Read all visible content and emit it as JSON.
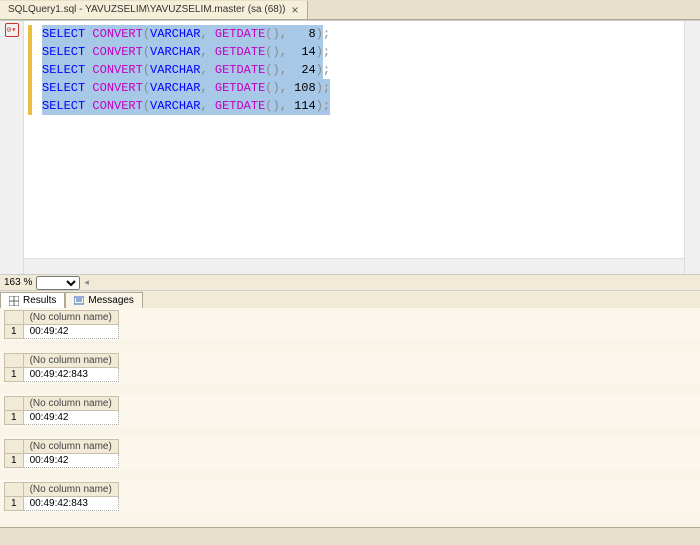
{
  "tab": {
    "title": "SQLQuery1.sql - YAVUZSELIM\\YAVUZSELIM.master (sa (68))"
  },
  "zoom": {
    "value": "163 %"
  },
  "code": {
    "lines": [
      {
        "style": "8",
        "semiSel": false
      },
      {
        "style": "14",
        "semiSel": false
      },
      {
        "style": "24",
        "semiSel": false
      },
      {
        "style": "108",
        "semiSel": true
      },
      {
        "style": "114",
        "semiSel": true
      }
    ],
    "keyword_select": "SELECT",
    "func_convert": "CONVERT",
    "type_varchar": "VARCHAR",
    "func_getdate": "GETDATE",
    "colors": {
      "keyword": "#0000ff",
      "function": "#c000c0",
      "type": "#0000ff",
      "selection_bg": "#a8c8e8",
      "marker": "#e8c040"
    }
  },
  "resultTabs": {
    "results": "Results",
    "messages": "Messages"
  },
  "results": [
    {
      "header": "(No column name)",
      "value": "00:49:42"
    },
    {
      "header": "(No column name)",
      "value": "00:49:42:843"
    },
    {
      "header": "(No column name)",
      "value": "00:49:42"
    },
    {
      "header": "(No column name)",
      "value": "00:49:42"
    },
    {
      "header": "(No column name)",
      "value": "00:49:42:843"
    }
  ]
}
